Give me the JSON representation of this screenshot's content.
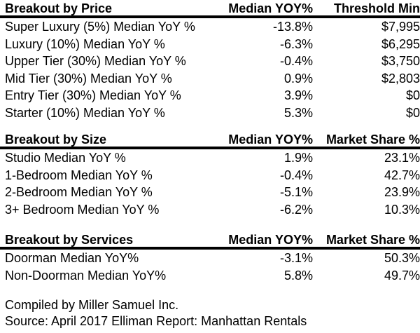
{
  "colors": {
    "background": "#ffffff",
    "text": "#000000",
    "header_rule": "#000000"
  },
  "tables": [
    {
      "columns": [
        "Breakout by Price",
        "Median YOY%",
        "Threshold Min"
      ],
      "rows": [
        [
          "Super Luxury (5%) Median YoY %",
          "-13.8%",
          "$7,995"
        ],
        [
          "Luxury (10%) Median YoY %",
          "-6.3%",
          "$6,295"
        ],
        [
          "Upper Tier (30%) Median YoY %",
          "-0.4%",
          "$3,750"
        ],
        [
          "Mid Tier (30%) Median YoY %",
          "0.9%",
          "$2,803"
        ],
        [
          "Entry Tier (30%) Median YoY %",
          "3.9%",
          "$0"
        ],
        [
          "Starter (10%) Median YoY %",
          "5.3%",
          "$0"
        ]
      ]
    },
    {
      "columns": [
        "Breakout by Size",
        "Median YOY%",
        "Market Share %"
      ],
      "rows": [
        [
          "Studio Median YoY %",
          "1.9%",
          "23.1%"
        ],
        [
          "1-Bedroom Median YoY %",
          "-0.4%",
          "42.7%"
        ],
        [
          "2-Bedroom Median YoY %",
          "-5.1%",
          "23.9%"
        ],
        [
          "3+ Bedroom Median YoY %",
          "-6.2%",
          "10.3%"
        ]
      ]
    },
    {
      "columns": [
        "Breakout by Services",
        "Median YOY%",
        "Market Share %"
      ],
      "rows": [
        [
          "Doorman Median YoY%",
          "-3.1%",
          "50.3%"
        ],
        [
          "Non-Doorman Median YoY%",
          "5.8%",
          "49.7%"
        ]
      ]
    }
  ],
  "footer": {
    "line1": "Compiled by Miller Samuel Inc.",
    "line2": "Source: April 2017 Elliman Report: Manhattan Rentals"
  }
}
